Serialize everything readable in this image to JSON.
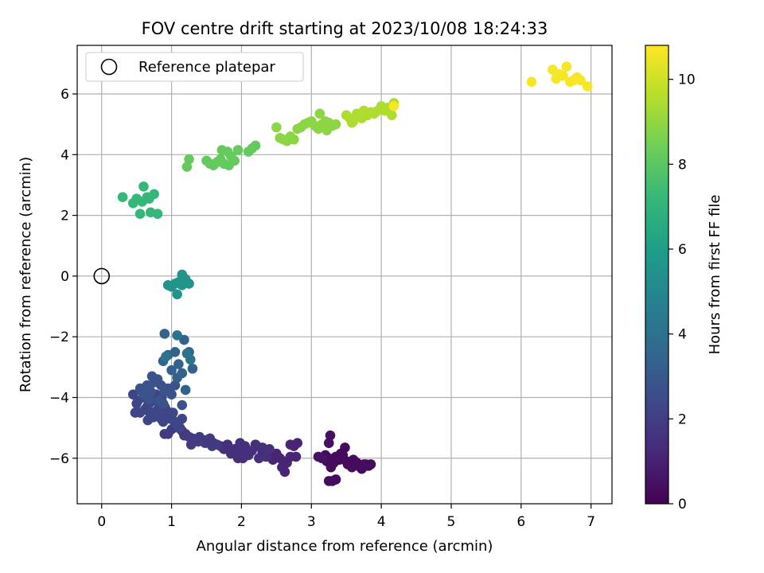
{
  "chart_data": {
    "type": "scatter",
    "title": "FOV centre drift starting at 2023/10/08 18:24:33",
    "xlabel": "Angular distance from reference (arcmin)",
    "ylabel": "Rotation from reference (arcmin)",
    "xlim": [
      -0.35,
      7.3
    ],
    "ylim": [
      -7.5,
      7.6
    ],
    "xticks": [
      0,
      1,
      2,
      3,
      4,
      5,
      6,
      7
    ],
    "yticks": [
      -6,
      -4,
      -2,
      0,
      2,
      4,
      6
    ],
    "grid": true,
    "legend": {
      "location": "upper-left",
      "entries": [
        "Reference platepar"
      ]
    },
    "reference_point": {
      "x": 0,
      "y": 0,
      "label": "Reference platepar"
    },
    "colorbar": {
      "label": "Hours from first FF file",
      "range": [
        0,
        10.8
      ],
      "ticks": [
        0,
        2,
        4,
        6,
        8,
        10
      ],
      "colormap": "viridis"
    },
    "colormap_stops": [
      "#440154",
      "#482878",
      "#3e4989",
      "#31688e",
      "#26828e",
      "#1f9e89",
      "#35b779",
      "#6ece58",
      "#b5de2b",
      "#fde725"
    ],
    "series": [
      {
        "hours": 0.3,
        "x": [
          3.2,
          3.25,
          3.3,
          3.35,
          3.4,
          3.45,
          3.5,
          3.55,
          3.6,
          3.65,
          3.7,
          3.75,
          3.8,
          3.85,
          3.22,
          3.28,
          3.32,
          3.38,
          3.42,
          3.48,
          3.52,
          3.58,
          3.62,
          3.68,
          3.72,
          3.78,
          3.82,
          3.25,
          3.3,
          3.35
        ],
        "y": [
          -5.9,
          -6.0,
          -6.1,
          -5.95,
          -6.05,
          -5.9,
          -6.1,
          -6.2,
          -6.05,
          -6.15,
          -6.3,
          -6.2,
          -6.25,
          -6.2,
          -6.1,
          -6.3,
          -6.15,
          -6.0,
          -5.85,
          -5.65,
          -6.2,
          -6.3,
          -6.1,
          -6.25,
          -6.35,
          -6.2,
          -6.25,
          -6.75,
          -6.75,
          -6.7
        ]
      },
      {
        "hours": 0.5,
        "x": [
          3.25,
          3.27,
          3.15,
          3.1
        ],
        "y": [
          -5.5,
          -5.25,
          -6.0,
          -5.95
        ]
      },
      {
        "hours": 1.1,
        "x": [
          2.3,
          2.4,
          2.5,
          2.55,
          2.6,
          2.65,
          2.7,
          2.75,
          2.8,
          2.45,
          2.35,
          2.58,
          2.62,
          2.78,
          2.7
        ],
        "y": [
          -5.8,
          -5.9,
          -5.85,
          -6.0,
          -6.1,
          -6.15,
          -5.95,
          -5.6,
          -5.5,
          -6.05,
          -5.75,
          -6.3,
          -6.45,
          -5.95,
          -5.55
        ]
      },
      {
        "hours": 1.5,
        "x": [
          1.7,
          1.8,
          1.9,
          1.95,
          2.0,
          2.05,
          2.1,
          2.15,
          2.2,
          2.25,
          2.3,
          2.35,
          2.4,
          1.85,
          1.75,
          2.02,
          2.12,
          2.22,
          1.98,
          2.08
        ],
        "y": [
          -5.6,
          -5.55,
          -5.7,
          -6.0,
          -5.8,
          -5.6,
          -5.9,
          -5.75,
          -5.55,
          -6.0,
          -5.65,
          -5.95,
          -5.7,
          -5.85,
          -5.7,
          -6.0,
          -5.8,
          -5.6,
          -5.5,
          -5.9
        ]
      },
      {
        "hours": 1.9,
        "x": [
          1.05,
          1.1,
          1.15,
          1.2,
          1.25,
          1.3,
          1.35,
          1.4,
          1.45,
          1.5,
          1.55,
          1.6,
          1.65,
          1.0,
          0.95,
          1.18,
          1.28,
          1.38,
          1.48,
          1.58,
          0.9
        ],
        "y": [
          -4.9,
          -5.0,
          -5.1,
          -5.2,
          -5.3,
          -5.35,
          -5.4,
          -5.3,
          -5.45,
          -5.4,
          -5.35,
          -5.5,
          -5.55,
          -5.05,
          -5.2,
          -5.25,
          -5.55,
          -5.45,
          -5.5,
          -5.6,
          -5.2
        ]
      },
      {
        "hours": 2.3,
        "x": [
          0.5,
          0.55,
          0.6,
          0.65,
          0.7,
          0.75,
          0.8,
          0.85,
          0.9,
          0.95,
          1.0,
          1.05,
          1.1,
          1.15,
          0.45,
          0.52,
          0.58,
          0.62,
          0.68,
          0.72,
          0.78,
          0.82,
          0.88,
          0.92,
          0.98,
          1.02,
          1.08,
          1.12,
          0.48,
          0.66,
          0.74,
          0.86
        ],
        "y": [
          -4.2,
          -4.5,
          -4.0,
          -4.3,
          -4.6,
          -4.1,
          -4.4,
          -4.7,
          -4.3,
          -4.5,
          -4.6,
          -4.8,
          -4.9,
          -4.7,
          -3.9,
          -4.1,
          -3.8,
          -4.4,
          -4.2,
          -4.5,
          -3.9,
          -4.6,
          -4.8,
          -4.4,
          -4.7,
          -4.5,
          -4.9,
          -5.0,
          -4.5,
          -4.75,
          -4.65,
          -4.0
        ]
      },
      {
        "hours": 2.8,
        "x": [
          0.55,
          0.6,
          0.65,
          0.7,
          0.75,
          0.8,
          0.85,
          0.9,
          0.95,
          1.0,
          1.05,
          1.15,
          0.72,
          0.88,
          0.68,
          0.82
        ],
        "y": [
          -3.7,
          -3.9,
          -3.6,
          -3.8,
          -3.5,
          -3.4,
          -3.6,
          -3.8,
          -3.7,
          -3.9,
          -3.6,
          -4.25,
          -3.3,
          -4.2,
          -4.05,
          -4.1
        ]
      },
      {
        "hours": 3.4,
        "x": [
          0.9,
          0.95,
          1.0,
          1.05,
          1.1,
          1.15,
          1.2,
          1.25,
          1.3,
          0.88,
          1.08,
          1.18
        ],
        "y": [
          -1.9,
          -2.6,
          -3.1,
          -2.5,
          -2.9,
          -3.2,
          -3.75,
          -2.5,
          -3.05,
          -2.8,
          -3.35,
          -2.1
        ]
      },
      {
        "hours": 4.1,
        "x": [
          1.08,
          1.22,
          1.27,
          0.92
        ],
        "y": [
          -1.95,
          -2.55,
          -2.75,
          -2.65
        ]
      },
      {
        "hours": 5.6,
        "x": [
          0.95,
          1.0,
          1.05,
          1.1,
          1.15,
          1.2,
          1.25,
          1.08,
          1.15
        ],
        "y": [
          -0.3,
          -0.35,
          -0.25,
          -0.2,
          -0.3,
          -0.1,
          -0.25,
          -0.6,
          0.05
        ]
      },
      {
        "hours": 7.2,
        "x": [
          0.3,
          0.45,
          0.5,
          0.55,
          0.6,
          0.65,
          0.7,
          0.75,
          0.8,
          0.58,
          0.68
        ],
        "y": [
          2.6,
          2.4,
          2.55,
          2.05,
          2.95,
          2.6,
          2.1,
          2.7,
          2.05,
          2.45,
          2.55
        ]
      },
      {
        "hours": 8.2,
        "x": [
          1.22,
          1.25,
          1.5,
          1.55,
          1.6,
          1.65,
          1.7,
          1.75,
          1.8,
          1.85,
          1.9,
          1.95,
          2.1,
          2.15,
          2.2,
          1.72,
          1.82
        ],
        "y": [
          3.6,
          3.85,
          3.8,
          3.7,
          3.65,
          3.75,
          3.85,
          3.7,
          4.1,
          3.95,
          3.8,
          4.15,
          4.1,
          4.2,
          4.3,
          4.15,
          3.65
        ]
      },
      {
        "hours": 8.9,
        "x": [
          2.5,
          2.55,
          2.6,
          2.65,
          2.7,
          2.75,
          2.8,
          2.85,
          2.9,
          2.95,
          3.0,
          3.05,
          3.1,
          3.15,
          3.2,
          3.25,
          3.3,
          3.35,
          3.12,
          3.22
        ],
        "y": [
          4.9,
          4.55,
          4.5,
          4.45,
          4.6,
          4.5,
          4.85,
          4.9,
          5.0,
          5.05,
          5.1,
          4.95,
          4.85,
          5.0,
          5.1,
          5.05,
          4.95,
          5.0,
          5.35,
          4.8
        ]
      },
      {
        "hours": 9.5,
        "x": [
          3.5,
          3.55,
          3.6,
          3.65,
          3.7,
          3.75,
          3.8,
          3.85,
          3.9,
          3.95,
          4.0,
          4.05,
          4.1,
          4.15,
          4.18,
          3.58,
          3.72
        ],
        "y": [
          5.3,
          5.2,
          5.1,
          5.35,
          5.25,
          5.45,
          5.3,
          5.4,
          5.35,
          5.45,
          5.6,
          5.45,
          5.55,
          5.3,
          5.7,
          5.05,
          5.2
        ]
      },
      {
        "hours": 10.7,
        "x": [
          6.15,
          6.45,
          6.5,
          6.55,
          6.6,
          6.65,
          6.7,
          6.75,
          6.8,
          6.85,
          6.95,
          4.18
        ],
        "y": [
          6.4,
          6.8,
          6.5,
          6.65,
          6.6,
          6.9,
          6.4,
          6.45,
          6.55,
          6.45,
          6.25,
          5.6
        ]
      }
    ]
  }
}
